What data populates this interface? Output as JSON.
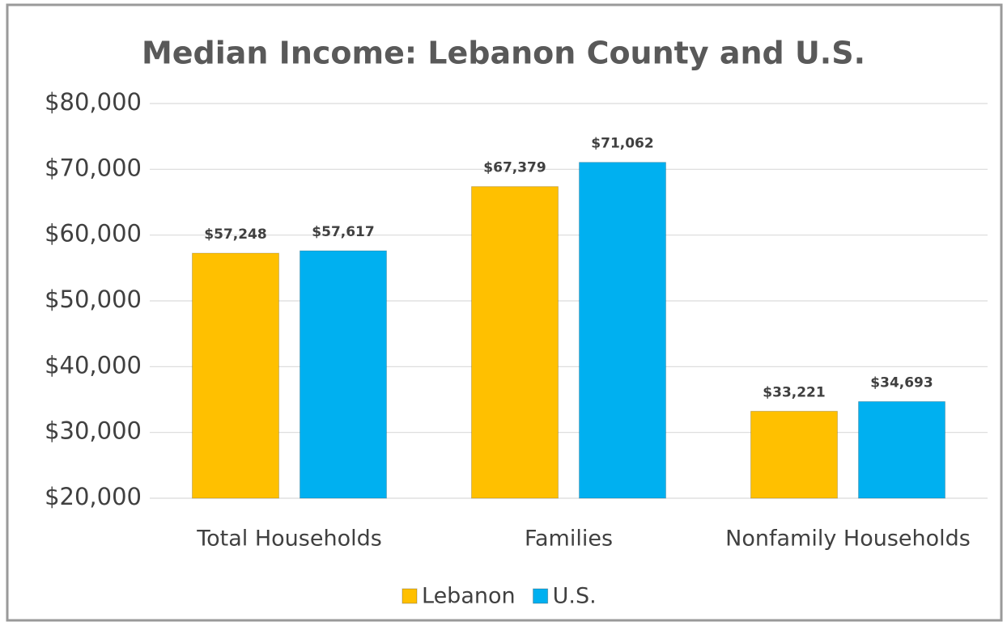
{
  "chart_data": {
    "type": "bar",
    "title": "Median Income: Lebanon County and U.S.",
    "categories": [
      "Total Households",
      "Families",
      "Nonfamily Households"
    ],
    "series": [
      {
        "name": "Lebanon",
        "color": "#ffc000",
        "values": [
          57248,
          67379,
          33221
        ],
        "value_labels": [
          "$57,248",
          "$67,379",
          "$33,221"
        ]
      },
      {
        "name": "U.S.",
        "color": "#00b0f0",
        "values": [
          57617,
          71062,
          34693
        ],
        "value_labels": [
          "$57,617",
          "$71,062",
          "$34,693"
        ]
      }
    ],
    "ylim": [
      20000,
      80000
    ],
    "yticks": [
      {
        "value": 20000,
        "label": "$20,000"
      },
      {
        "value": 30000,
        "label": "$30,000"
      },
      {
        "value": 40000,
        "label": "$40,000"
      },
      {
        "value": 50000,
        "label": "$50,000"
      },
      {
        "value": 60000,
        "label": "$60,000"
      },
      {
        "value": 70000,
        "label": "$70,000"
      },
      {
        "value": 80000,
        "label": "$80,000"
      }
    ],
    "grid": true,
    "legend": "bottom"
  }
}
